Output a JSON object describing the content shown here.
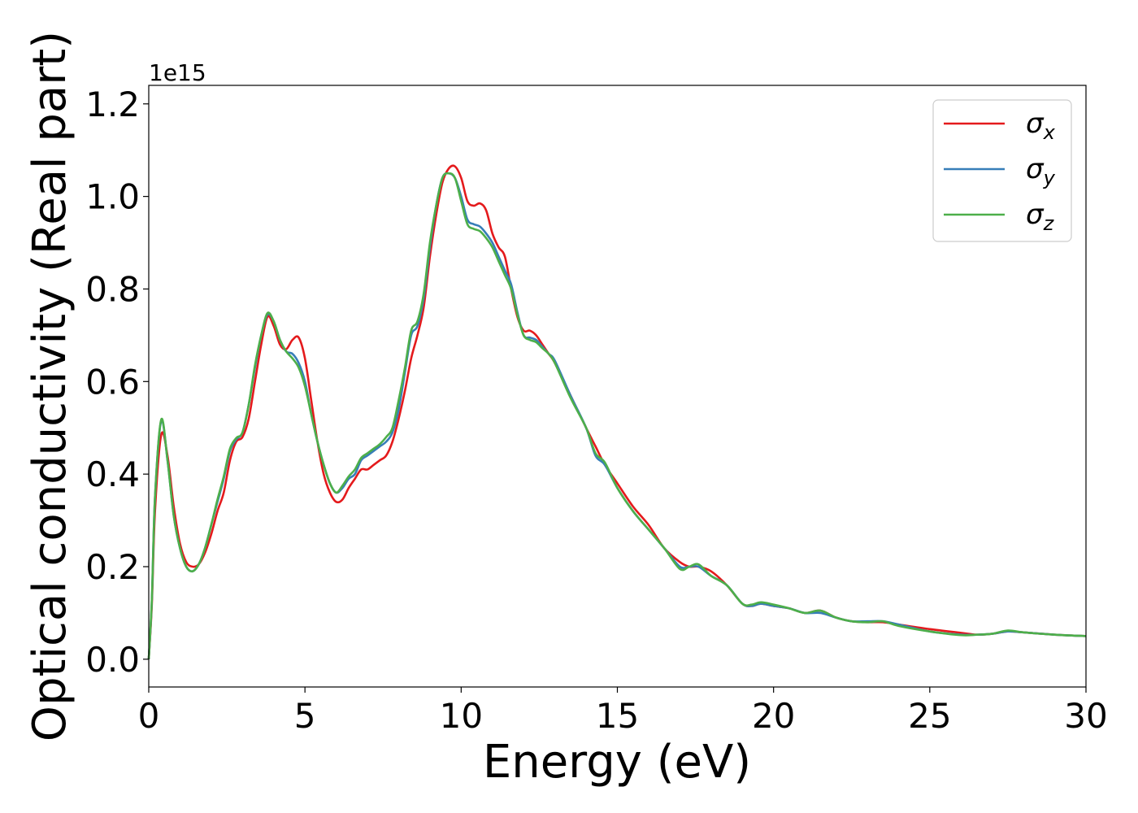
{
  "chart_data": {
    "type": "line",
    "xlabel": "Energy (eV)",
    "ylabel": "Optical conductivity (Real part)",
    "y_offset_label": "1e15",
    "xlim": [
      0,
      30
    ],
    "ylim": [
      -0.06,
      1.24
    ],
    "x_ticks": [
      0,
      5,
      10,
      15,
      20,
      25,
      30
    ],
    "x_tick_labels": [
      "0",
      "5",
      "10",
      "15",
      "20",
      "25",
      "30"
    ],
    "y_ticks": [
      0.0,
      0.2,
      0.4,
      0.6,
      0.8,
      1.0,
      1.2
    ],
    "y_tick_labels": [
      "0.0",
      "0.2",
      "0.4",
      "0.6",
      "0.8",
      "1.0",
      "1.2"
    ],
    "grid": false,
    "legend_position": "top-right",
    "series": [
      {
        "name": "σx",
        "symbol": "σ",
        "subscript": "x",
        "color": "#e41a1c",
        "x": [
          0,
          0.1,
          0.2,
          0.4,
          0.6,
          0.8,
          1.0,
          1.2,
          1.4,
          1.6,
          1.8,
          2.0,
          2.2,
          2.4,
          2.6,
          2.8,
          3.0,
          3.2,
          3.4,
          3.6,
          3.8,
          4.0,
          4.2,
          4.4,
          4.6,
          4.8,
          5.0,
          5.2,
          5.4,
          5.6,
          5.8,
          6.0,
          6.2,
          6.4,
          6.6,
          6.8,
          7.0,
          7.2,
          7.4,
          7.6,
          7.8,
          8.0,
          8.2,
          8.4,
          8.6,
          8.8,
          9.0,
          9.2,
          9.4,
          9.6,
          9.8,
          10.0,
          10.2,
          10.4,
          10.6,
          10.8,
          11.0,
          11.2,
          11.4,
          11.6,
          11.8,
          12.0,
          12.2,
          12.4,
          12.6,
          12.8,
          13.0,
          13.5,
          14.0,
          14.3,
          14.6,
          15.0,
          15.5,
          16.0,
          16.5,
          17.0,
          17.3,
          17.6,
          18.0,
          18.5,
          19.0,
          19.3,
          19.6,
          20.0,
          20.5,
          21.0,
          21.5,
          22.0,
          22.5,
          23.0,
          23.5,
          24.0,
          25.0,
          26.0,
          26.5,
          27.0,
          27.5,
          28.0,
          29.0,
          30.0
        ],
        "values": [
          0.0,
          0.12,
          0.32,
          0.485,
          0.44,
          0.33,
          0.25,
          0.21,
          0.2,
          0.205,
          0.23,
          0.27,
          0.32,
          0.36,
          0.43,
          0.47,
          0.48,
          0.52,
          0.6,
          0.68,
          0.74,
          0.72,
          0.68,
          0.67,
          0.69,
          0.695,
          0.65,
          0.56,
          0.47,
          0.4,
          0.36,
          0.34,
          0.345,
          0.37,
          0.39,
          0.41,
          0.41,
          0.42,
          0.43,
          0.44,
          0.47,
          0.52,
          0.58,
          0.65,
          0.7,
          0.76,
          0.87,
          0.96,
          1.03,
          1.06,
          1.065,
          1.04,
          0.99,
          0.98,
          0.985,
          0.97,
          0.92,
          0.89,
          0.87,
          0.8,
          0.74,
          0.71,
          0.71,
          0.7,
          0.68,
          0.66,
          0.64,
          0.57,
          0.5,
          0.46,
          0.42,
          0.38,
          0.33,
          0.29,
          0.24,
          0.21,
          0.2,
          0.2,
          0.19,
          0.16,
          0.12,
          0.115,
          0.12,
          0.115,
          0.11,
          0.1,
          0.105,
          0.09,
          0.082,
          0.08,
          0.08,
          0.075,
          0.065,
          0.057,
          0.053,
          0.055,
          0.06,
          0.058,
          0.053,
          0.05
        ]
      },
      {
        "name": "σy",
        "symbol": "σ",
        "subscript": "y",
        "color": "#377eb8",
        "x": [
          0,
          0.1,
          0.2,
          0.4,
          0.6,
          0.8,
          1.0,
          1.2,
          1.4,
          1.6,
          1.8,
          2.0,
          2.2,
          2.4,
          2.6,
          2.8,
          3.0,
          3.2,
          3.4,
          3.6,
          3.8,
          4.0,
          4.2,
          4.4,
          4.6,
          4.8,
          5.0,
          5.2,
          5.4,
          5.6,
          5.8,
          6.0,
          6.2,
          6.4,
          6.6,
          6.8,
          7.0,
          7.2,
          7.4,
          7.6,
          7.8,
          8.0,
          8.2,
          8.4,
          8.6,
          8.8,
          9.0,
          9.2,
          9.4,
          9.6,
          9.8,
          10.0,
          10.2,
          10.4,
          10.6,
          10.8,
          11.0,
          11.2,
          11.4,
          11.6,
          11.8,
          12.0,
          12.2,
          12.4,
          12.6,
          12.8,
          13.0,
          13.5,
          14.0,
          14.3,
          14.6,
          15.0,
          15.5,
          16.0,
          16.5,
          17.0,
          17.3,
          17.6,
          18.0,
          18.5,
          19.0,
          19.3,
          19.6,
          20.0,
          20.5,
          21.0,
          21.5,
          22.0,
          22.5,
          23.0,
          23.5,
          24.0,
          25.0,
          26.0,
          26.5,
          27.0,
          27.5,
          28.0,
          29.0,
          30.0
        ],
        "values": [
          0.0,
          0.13,
          0.35,
          0.515,
          0.43,
          0.31,
          0.24,
          0.2,
          0.19,
          0.205,
          0.24,
          0.29,
          0.34,
          0.39,
          0.45,
          0.475,
          0.49,
          0.55,
          0.63,
          0.7,
          0.745,
          0.73,
          0.69,
          0.665,
          0.66,
          0.64,
          0.6,
          0.53,
          0.47,
          0.42,
          0.38,
          0.36,
          0.37,
          0.39,
          0.4,
          0.43,
          0.44,
          0.45,
          0.46,
          0.47,
          0.49,
          0.54,
          0.62,
          0.7,
          0.72,
          0.78,
          0.89,
          0.98,
          1.04,
          1.05,
          1.04,
          1.0,
          0.95,
          0.94,
          0.935,
          0.92,
          0.9,
          0.87,
          0.84,
          0.81,
          0.75,
          0.7,
          0.695,
          0.69,
          0.675,
          0.66,
          0.645,
          0.57,
          0.5,
          0.44,
          0.42,
          0.37,
          0.32,
          0.28,
          0.24,
          0.2,
          0.2,
          0.2,
          0.18,
          0.16,
          0.12,
          0.115,
          0.12,
          0.115,
          0.11,
          0.1,
          0.1,
          0.09,
          0.082,
          0.082,
          0.082,
          0.075,
          0.06,
          0.053,
          0.053,
          0.055,
          0.06,
          0.058,
          0.053,
          0.05
        ]
      },
      {
        "name": "σz",
        "symbol": "σ",
        "subscript": "z",
        "color": "#4daf4a",
        "x": [
          0,
          0.1,
          0.2,
          0.4,
          0.6,
          0.8,
          1.0,
          1.2,
          1.4,
          1.6,
          1.8,
          2.0,
          2.2,
          2.4,
          2.6,
          2.8,
          3.0,
          3.2,
          3.4,
          3.6,
          3.8,
          4.0,
          4.2,
          4.4,
          4.6,
          4.8,
          5.0,
          5.2,
          5.4,
          5.6,
          5.8,
          6.0,
          6.2,
          6.4,
          6.6,
          6.8,
          7.0,
          7.2,
          7.4,
          7.6,
          7.8,
          8.0,
          8.2,
          8.4,
          8.6,
          8.8,
          9.0,
          9.2,
          9.4,
          9.6,
          9.8,
          10.0,
          10.2,
          10.4,
          10.6,
          10.8,
          11.0,
          11.2,
          11.4,
          11.6,
          11.8,
          12.0,
          12.2,
          12.4,
          12.6,
          12.8,
          13.0,
          13.5,
          14.0,
          14.3,
          14.6,
          15.0,
          15.5,
          16.0,
          16.5,
          17.0,
          17.3,
          17.6,
          18.0,
          18.5,
          19.0,
          19.3,
          19.6,
          20.0,
          20.5,
          21.0,
          21.5,
          22.0,
          22.5,
          23.0,
          23.5,
          24.0,
          25.0,
          26.0,
          26.5,
          27.0,
          27.5,
          28.0,
          29.0,
          30.0
        ],
        "values": [
          0.0,
          0.13,
          0.35,
          0.518,
          0.43,
          0.31,
          0.24,
          0.2,
          0.19,
          0.205,
          0.24,
          0.29,
          0.345,
          0.395,
          0.455,
          0.478,
          0.49,
          0.55,
          0.635,
          0.7,
          0.748,
          0.73,
          0.69,
          0.665,
          0.65,
          0.63,
          0.59,
          0.53,
          0.47,
          0.42,
          0.38,
          0.36,
          0.375,
          0.395,
          0.41,
          0.435,
          0.445,
          0.455,
          0.465,
          0.48,
          0.5,
          0.56,
          0.63,
          0.71,
          0.73,
          0.79,
          0.9,
          0.98,
          1.04,
          1.05,
          1.04,
          0.99,
          0.94,
          0.93,
          0.925,
          0.91,
          0.89,
          0.86,
          0.83,
          0.8,
          0.745,
          0.7,
          0.69,
          0.685,
          0.672,
          0.66,
          0.64,
          0.565,
          0.5,
          0.445,
          0.425,
          0.37,
          0.32,
          0.28,
          0.24,
          0.195,
          0.2,
          0.205,
          0.18,
          0.16,
          0.12,
          0.118,
          0.123,
          0.118,
          0.11,
          0.1,
          0.105,
          0.09,
          0.082,
          0.08,
          0.082,
          0.072,
          0.06,
          0.052,
          0.053,
          0.055,
          0.062,
          0.058,
          0.053,
          0.05
        ]
      }
    ]
  }
}
